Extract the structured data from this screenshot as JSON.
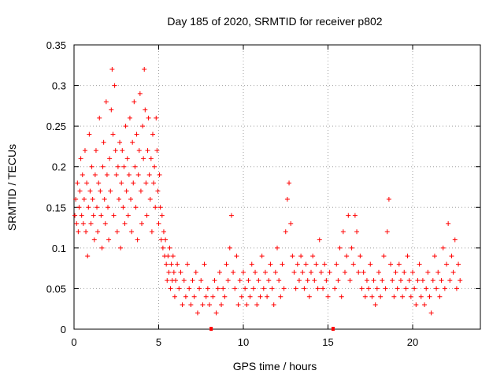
{
  "chart_data": {
    "type": "scatter",
    "title": "Day 185 of 2020, SRMTID for receiver p802",
    "xlabel": "GPS time / hours",
    "ylabel": "SRMTID / TECUs",
    "xlim": [
      0,
      24
    ],
    "ylim": [
      0,
      0.35
    ],
    "grid": true,
    "xticks": [
      0,
      5,
      10,
      15,
      20
    ],
    "xtick_labels": [
      "0",
      "5",
      "10",
      "15",
      "20"
    ],
    "yticks": [
      0,
      0.05,
      0.1,
      0.15,
      0.2,
      0.25,
      0.3,
      0.35
    ],
    "ytick_labels": [
      "0",
      "0.05",
      "0.1",
      "0.15",
      "0.2",
      "0.25",
      "0.3",
      "0.35"
    ],
    "marker": "+",
    "color": "#ff0000",
    "data_gaps_hours": [
      8.1,
      15.3
    ],
    "series": [
      {
        "name": "SRMTID",
        "points": [
          [
            0.05,
            0.14
          ],
          [
            0.1,
            0.16
          ],
          [
            0.15,
            0.13
          ],
          [
            0.2,
            0.18
          ],
          [
            0.25,
            0.12
          ],
          [
            0.3,
            0.15
          ],
          [
            0.35,
            0.17
          ],
          [
            0.4,
            0.21
          ],
          [
            0.45,
            0.14
          ],
          [
            0.5,
            0.19
          ],
          [
            0.55,
            0.13
          ],
          [
            0.6,
            0.16
          ],
          [
            0.65,
            0.22
          ],
          [
            0.7,
            0.12
          ],
          [
            0.75,
            0.18
          ],
          [
            0.8,
            0.09
          ],
          [
            0.85,
            0.15
          ],
          [
            0.9,
            0.24
          ],
          [
            0.95,
            0.17
          ],
          [
            1.0,
            0.13
          ],
          [
            1.05,
            0.2
          ],
          [
            1.1,
            0.16
          ],
          [
            1.15,
            0.14
          ],
          [
            1.2,
            0.11
          ],
          [
            1.25,
            0.19
          ],
          [
            1.3,
            0.22
          ],
          [
            1.35,
            0.15
          ],
          [
            1.4,
            0.12
          ],
          [
            1.45,
            0.18
          ],
          [
            1.5,
            0.26
          ],
          [
            1.55,
            0.17
          ],
          [
            1.6,
            0.14
          ],
          [
            1.65,
            0.1
          ],
          [
            1.7,
            0.2
          ],
          [
            1.75,
            0.23
          ],
          [
            1.8,
            0.16
          ],
          [
            1.85,
            0.13
          ],
          [
            1.9,
            0.28
          ],
          [
            1.95,
            0.19
          ],
          [
            2.0,
            0.15
          ],
          [
            2.05,
            0.11
          ],
          [
            2.1,
            0.21
          ],
          [
            2.15,
            0.17
          ],
          [
            2.2,
            0.27
          ],
          [
            2.25,
            0.32
          ],
          [
            2.3,
            0.24
          ],
          [
            2.35,
            0.14
          ],
          [
            2.4,
            0.3
          ],
          [
            2.45,
            0.22
          ],
          [
            2.5,
            0.19
          ],
          [
            2.55,
            0.12
          ],
          [
            2.6,
            0.2
          ],
          [
            2.65,
            0.16
          ],
          [
            2.7,
            0.23
          ],
          [
            2.75,
            0.1
          ],
          [
            2.8,
            0.18
          ],
          [
            2.85,
            0.22
          ],
          [
            2.9,
            0.15
          ],
          [
            2.95,
            0.2
          ],
          [
            3.0,
            0.13
          ],
          [
            3.05,
            0.25
          ],
          [
            3.1,
            0.17
          ],
          [
            3.15,
            0.21
          ],
          [
            3.2,
            0.14
          ],
          [
            3.25,
            0.19
          ],
          [
            3.3,
            0.26
          ],
          [
            3.35,
            0.16
          ],
          [
            3.4,
            0.12
          ],
          [
            3.45,
            0.23
          ],
          [
            3.5,
            0.18
          ],
          [
            3.55,
            0.28
          ],
          [
            3.6,
            0.2
          ],
          [
            3.65,
            0.15
          ],
          [
            3.7,
            0.24
          ],
          [
            3.75,
            0.11
          ],
          [
            3.8,
            0.19
          ],
          [
            3.85,
            0.22
          ],
          [
            3.9,
            0.29
          ],
          [
            3.95,
            0.17
          ],
          [
            4.0,
            0.13
          ],
          [
            4.05,
            0.25
          ],
          [
            4.1,
            0.21
          ],
          [
            4.15,
            0.32
          ],
          [
            4.2,
            0.27
          ],
          [
            4.25,
            0.18
          ],
          [
            4.3,
            0.14
          ],
          [
            4.35,
            0.22
          ],
          [
            4.4,
            0.26
          ],
          [
            4.45,
            0.19
          ],
          [
            4.5,
            0.16
          ],
          [
            4.55,
            0.21
          ],
          [
            4.6,
            0.12
          ],
          [
            4.65,
            0.24
          ],
          [
            4.7,
            0.18
          ],
          [
            4.75,
            0.2
          ],
          [
            4.8,
            0.15
          ],
          [
            4.85,
            0.26
          ],
          [
            4.9,
            0.22
          ],
          [
            4.95,
            0.17
          ],
          [
            5.0,
            0.13
          ],
          [
            5.05,
            0.19
          ],
          [
            5.1,
            0.15
          ],
          [
            5.15,
            0.11
          ],
          [
            5.2,
            0.14
          ],
          [
            5.25,
            0.1
          ],
          [
            5.3,
            0.12
          ],
          [
            5.35,
            0.09
          ],
          [
            5.4,
            0.11
          ],
          [
            5.45,
            0.08
          ],
          [
            5.5,
            0.06
          ],
          [
            5.55,
            0.09
          ],
          [
            5.6,
            0.07
          ],
          [
            5.65,
            0.1
          ],
          [
            5.7,
            0.05
          ],
          [
            5.75,
            0.08
          ],
          [
            5.8,
            0.06
          ],
          [
            5.85,
            0.09
          ],
          [
            5.9,
            0.07
          ],
          [
            5.95,
            0.04
          ],
          [
            6.0,
            0.06
          ],
          [
            6.1,
            0.08
          ],
          [
            6.2,
            0.05
          ],
          [
            6.3,
            0.07
          ],
          [
            6.4,
            0.03
          ],
          [
            6.5,
            0.06
          ],
          [
            6.6,
            0.04
          ],
          [
            6.7,
            0.08
          ],
          [
            6.8,
            0.05
          ],
          [
            6.9,
            0.03
          ],
          [
            7.0,
            0.06
          ],
          [
            7.1,
            0.04
          ],
          [
            7.2,
            0.07
          ],
          [
            7.3,
            0.02
          ],
          [
            7.4,
            0.05
          ],
          [
            7.5,
            0.06
          ],
          [
            7.6,
            0.03
          ],
          [
            7.7,
            0.08
          ],
          [
            7.8,
            0.04
          ],
          [
            7.9,
            0.05
          ],
          [
            8.0,
            0.03
          ],
          [
            8.2,
            0.04
          ],
          [
            8.3,
            0.06
          ],
          [
            8.4,
            0.02
          ],
          [
            8.5,
            0.05
          ],
          [
            8.6,
            0.07
          ],
          [
            8.7,
            0.03
          ],
          [
            8.8,
            0.05
          ],
          [
            8.9,
            0.04
          ],
          [
            9.0,
            0.08
          ],
          [
            9.1,
            0.06
          ],
          [
            9.2,
            0.1
          ],
          [
            9.3,
            0.14
          ],
          [
            9.4,
            0.07
          ],
          [
            9.5,
            0.05
          ],
          [
            9.6,
            0.09
          ],
          [
            9.7,
            0.03
          ],
          [
            9.8,
            0.06
          ],
          [
            9.9,
            0.04
          ],
          [
            10.0,
            0.07
          ],
          [
            10.1,
            0.05
          ],
          [
            10.2,
            0.03
          ],
          [
            10.3,
            0.06
          ],
          [
            10.4,
            0.04
          ],
          [
            10.5,
            0.08
          ],
          [
            10.6,
            0.05
          ],
          [
            10.7,
            0.07
          ],
          [
            10.8,
            0.03
          ],
          [
            10.9,
            0.06
          ],
          [
            11.0,
            0.04
          ],
          [
            11.1,
            0.09
          ],
          [
            11.2,
            0.05
          ],
          [
            11.3,
            0.07
          ],
          [
            11.4,
            0.04
          ],
          [
            11.5,
            0.06
          ],
          [
            11.6,
            0.08
          ],
          [
            11.7,
            0.05
          ],
          [
            11.8,
            0.03
          ],
          [
            11.9,
            0.07
          ],
          [
            12.0,
            0.1
          ],
          [
            12.1,
            0.06
          ],
          [
            12.2,
            0.04
          ],
          [
            12.3,
            0.08
          ],
          [
            12.4,
            0.05
          ],
          [
            12.5,
            0.12
          ],
          [
            12.6,
            0.16
          ],
          [
            12.7,
            0.18
          ],
          [
            12.8,
            0.13
          ],
          [
            12.9,
            0.09
          ],
          [
            13.0,
            0.07
          ],
          [
            13.1,
            0.05
          ],
          [
            13.2,
            0.08
          ],
          [
            13.3,
            0.06
          ],
          [
            13.4,
            0.09
          ],
          [
            13.5,
            0.07
          ],
          [
            13.6,
            0.05
          ],
          [
            13.7,
            0.08
          ],
          [
            13.8,
            0.06
          ],
          [
            13.9,
            0.04
          ],
          [
            14.0,
            0.07
          ],
          [
            14.1,
            0.09
          ],
          [
            14.2,
            0.06
          ],
          [
            14.3,
            0.08
          ],
          [
            14.4,
            0.05
          ],
          [
            14.5,
            0.11
          ],
          [
            14.6,
            0.07
          ],
          [
            14.7,
            0.05
          ],
          [
            14.8,
            0.08
          ],
          [
            14.9,
            0.06
          ],
          [
            15.0,
            0.04
          ],
          [
            15.1,
            0.07
          ],
          [
            15.4,
            0.05
          ],
          [
            15.5,
            0.08
          ],
          [
            15.6,
            0.06
          ],
          [
            15.7,
            0.1
          ],
          [
            15.8,
            0.04
          ],
          [
            15.9,
            0.12
          ],
          [
            16.0,
            0.07
          ],
          [
            16.1,
            0.09
          ],
          [
            16.2,
            0.14
          ],
          [
            16.3,
            0.06
          ],
          [
            16.4,
            0.1
          ],
          [
            16.5,
            0.08
          ],
          [
            16.6,
            0.14
          ],
          [
            16.7,
            0.12
          ],
          [
            16.8,
            0.07
          ],
          [
            16.9,
            0.09
          ],
          [
            17.0,
            0.05
          ],
          [
            17.1,
            0.07
          ],
          [
            17.2,
            0.04
          ],
          [
            17.3,
            0.06
          ],
          [
            17.4,
            0.05
          ],
          [
            17.5,
            0.08
          ],
          [
            17.6,
            0.04
          ],
          [
            17.7,
            0.06
          ],
          [
            17.8,
            0.03
          ],
          [
            17.9,
            0.05
          ],
          [
            18.0,
            0.07
          ],
          [
            18.1,
            0.04
          ],
          [
            18.2,
            0.06
          ],
          [
            18.3,
            0.09
          ],
          [
            18.4,
            0.05
          ],
          [
            18.5,
            0.12
          ],
          [
            18.6,
            0.16
          ],
          [
            18.7,
            0.08
          ],
          [
            18.8,
            0.06
          ],
          [
            18.9,
            0.04
          ],
          [
            19.0,
            0.07
          ],
          [
            19.1,
            0.05
          ],
          [
            19.2,
            0.08
          ],
          [
            19.3,
            0.06
          ],
          [
            19.4,
            0.04
          ],
          [
            19.5,
            0.07
          ],
          [
            19.6,
            0.05
          ],
          [
            19.7,
            0.09
          ],
          [
            19.8,
            0.06
          ],
          [
            19.9,
            0.04
          ],
          [
            20.0,
            0.07
          ],
          [
            20.1,
            0.05
          ],
          [
            20.2,
            0.03
          ],
          [
            20.3,
            0.06
          ],
          [
            20.4,
            0.08
          ],
          [
            20.5,
            0.04
          ],
          [
            20.6,
            0.06
          ],
          [
            20.7,
            0.03
          ],
          [
            20.8,
            0.05
          ],
          [
            20.9,
            0.07
          ],
          [
            21.0,
            0.04
          ],
          [
            21.1,
            0.02
          ],
          [
            21.2,
            0.06
          ],
          [
            21.3,
            0.09
          ],
          [
            21.4,
            0.05
          ],
          [
            21.5,
            0.07
          ],
          [
            21.6,
            0.04
          ],
          [
            21.7,
            0.06
          ],
          [
            21.8,
            0.1
          ],
          [
            21.9,
            0.05
          ],
          [
            22.0,
            0.08
          ],
          [
            22.1,
            0.13
          ],
          [
            22.2,
            0.06
          ],
          [
            22.3,
            0.09
          ],
          [
            22.4,
            0.07
          ],
          [
            22.5,
            0.11
          ],
          [
            22.6,
            0.05
          ],
          [
            22.7,
            0.08
          ],
          [
            22.8,
            0.06
          ]
        ]
      }
    ]
  }
}
